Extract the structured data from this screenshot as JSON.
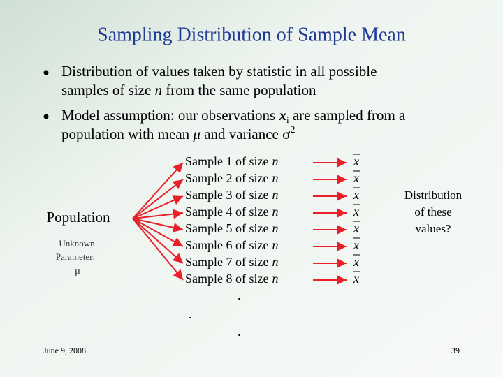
{
  "title": "Sampling Distribution of Sample Mean",
  "bullets": [
    {
      "lines": [
        [
          "Distribution of values taken by statistic in all possible"
        ],
        [
          "samples of size ",
          "n",
          " from the same population"
        ]
      ]
    },
    {
      "lines": [
        [
          "Model assumption: our observations ",
          "x",
          "i",
          " are sampled from a"
        ],
        [
          "population with mean ",
          "μ",
          " and variance ",
          "σ",
          "2"
        ]
      ]
    }
  ],
  "population": {
    "label": "Population",
    "note": [
      "Unknown",
      "Parameter:",
      "μ"
    ]
  },
  "samples": [
    {
      "label": "Sample 1 of size",
      "variable": "n"
    },
    {
      "label": "Sample 2 of size",
      "variable": "n"
    },
    {
      "label": "Sample 3 of size",
      "variable": "n"
    },
    {
      "label": "Sample 4 of size",
      "variable": "n"
    },
    {
      "label": "Sample 5 of size",
      "variable": "n"
    },
    {
      "label": "Sample 6 of size",
      "variable": "n"
    },
    {
      "label": "Sample 7 of size",
      "variable": "n"
    },
    {
      "label": "Sample 8 of size",
      "variable": "n"
    }
  ],
  "means": [
    "x",
    "x",
    "x",
    "x",
    "x",
    "x",
    "x",
    "x"
  ],
  "dots": [
    ".",
    ".",
    "."
  ],
  "distribution": [
    "Distribution",
    "of these",
    "values?"
  ],
  "footer": {
    "date": "June 9, 2008",
    "page": "39"
  }
}
